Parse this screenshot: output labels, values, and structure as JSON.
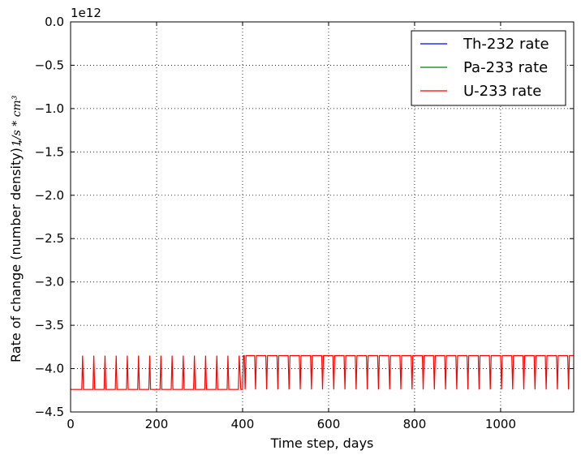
{
  "chart_data": {
    "type": "line",
    "title": "",
    "xlabel": "Time step, days",
    "ylabel": "Rate of change (number density) ,",
    "ylabel_unit": "1/s * cm³",
    "offset_label": "1e12",
    "xlim": [
      0,
      1170
    ],
    "ylim": [
      -4.5,
      0.0
    ],
    "x_ticks": [
      0,
      200,
      400,
      600,
      800,
      1000
    ],
    "y_ticks": [
      0.0,
      -0.5,
      -1.0,
      -1.5,
      -2.0,
      -2.5,
      -3.0,
      -3.5,
      -4.0,
      -4.5
    ],
    "y_tick_labels": [
      "0.0",
      "−0.5",
      "−1.0",
      "−1.5",
      "−2.0",
      "−2.5",
      "−3.0",
      "−3.5",
      "−4.0",
      "−4.5"
    ],
    "grid": true,
    "legend_position": "top-right",
    "series": [
      {
        "name": "Th-232 rate",
        "color": "#0000ff",
        "x": [],
        "y": []
      },
      {
        "name": "Pa-233 rate",
        "color": "#008000",
        "x": [],
        "y": []
      },
      {
        "name": "U-233 rate",
        "color": "#ff0000",
        "x": [
          0,
          26,
          28,
          30,
          52,
          54,
          56,
          78,
          80,
          82,
          104,
          106,
          108,
          130,
          132,
          134,
          156,
          158,
          160,
          182,
          184,
          186,
          208,
          210,
          212,
          234,
          236,
          238,
          260,
          262,
          264,
          286,
          288,
          290,
          312,
          314,
          316,
          338,
          340,
          342,
          364,
          366,
          368,
          390,
          392,
          396,
          400,
          402,
          404,
          406,
          408,
          410,
          412,
          414,
          416,
          418,
          428,
          430,
          432,
          454,
          456,
          458,
          480,
          482,
          484,
          506,
          508,
          510,
          532,
          534,
          536,
          558,
          560,
          562,
          584,
          586,
          588,
          610,
          612,
          614,
          636,
          638,
          640,
          662,
          664,
          666,
          688,
          690,
          692,
          714,
          716,
          718,
          740,
          742,
          744,
          766,
          768,
          770,
          792,
          794,
          796,
          818,
          820,
          822,
          844,
          846,
          848,
          870,
          872,
          874,
          896,
          898,
          900,
          922,
          924,
          926,
          948,
          950,
          952,
          974,
          976,
          978,
          1000,
          1002,
          1004,
          1026,
          1028,
          1030,
          1052,
          1054,
          1056,
          1078,
          1080,
          1082,
          1104,
          1106,
          1108,
          1130,
          1132,
          1134,
          1156,
          1158,
          1160,
          1170
        ],
        "y": [
          -4.24,
          -4.24,
          -3.85,
          -4.24,
          -4.24,
          -3.85,
          -4.24,
          -4.24,
          -3.85,
          -4.24,
          -4.24,
          -3.85,
          -4.24,
          -4.24,
          -3.85,
          -4.24,
          -4.24,
          -3.85,
          -4.24,
          -4.24,
          -3.85,
          -4.24,
          -4.24,
          -3.85,
          -4.24,
          -4.24,
          -3.85,
          -4.24,
          -4.24,
          -3.85,
          -4.24,
          -4.24,
          -3.85,
          -4.24,
          -4.24,
          -3.85,
          -4.24,
          -4.24,
          -3.85,
          -4.24,
          -4.24,
          -3.85,
          -4.24,
          -4.24,
          -3.85,
          -4.24,
          -4.24,
          -3.85,
          -3.85,
          -4.24,
          -3.85,
          -3.85,
          -3.85,
          -3.85,
          -3.85,
          -3.85,
          -3.85,
          -4.24,
          -3.85,
          -3.85,
          -4.24,
          -3.85,
          -3.85,
          -4.24,
          -3.85,
          -3.85,
          -4.24,
          -3.85,
          -3.85,
          -4.24,
          -3.85,
          -3.85,
          -4.24,
          -3.85,
          -3.85,
          -4.24,
          -3.85,
          -3.85,
          -4.24,
          -3.85,
          -3.85,
          -4.24,
          -3.85,
          -3.85,
          -4.24,
          -3.85,
          -3.85,
          -4.24,
          -3.85,
          -3.85,
          -4.24,
          -3.85,
          -3.85,
          -4.24,
          -3.85,
          -3.85,
          -4.24,
          -3.85,
          -3.85,
          -4.24,
          -3.85,
          -3.85,
          -4.24,
          -3.85,
          -3.85,
          -4.24,
          -3.85,
          -3.85,
          -4.24,
          -3.85,
          -3.85,
          -4.24,
          -3.85,
          -3.85,
          -4.24,
          -3.85,
          -3.85,
          -4.24,
          -3.85,
          -3.85,
          -4.24,
          -3.85,
          -3.85,
          -4.24,
          -3.85,
          -3.85,
          -4.24,
          -3.85,
          -3.85,
          -4.24,
          -3.85,
          -3.85,
          -4.24,
          -3.85,
          -3.85,
          -4.24,
          -3.85,
          -3.85,
          -4.24,
          -3.85,
          -3.85,
          -4.24,
          -3.85,
          -3.85
        ]
      }
    ]
  }
}
